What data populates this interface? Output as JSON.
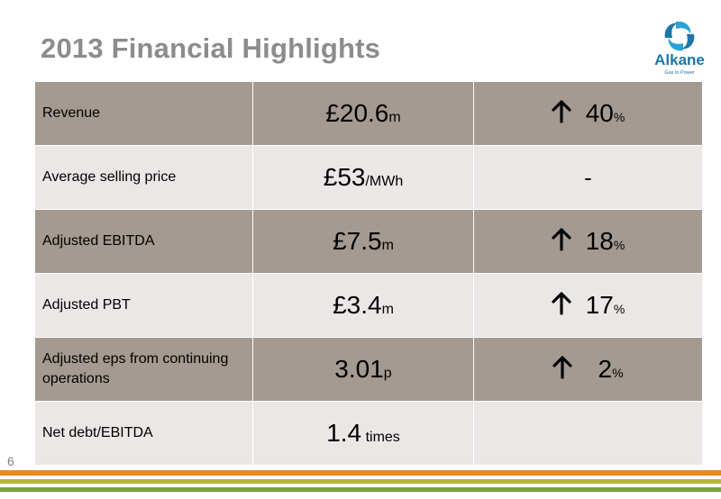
{
  "slide": {
    "title": "2013 Financial Highlights",
    "page_number": "6"
  },
  "logo": {
    "name": "Alkane",
    "tagline": "Gas to Power"
  },
  "rows": [
    {
      "label": "Revenue",
      "value": "£20.6",
      "unit": "m",
      "change_value": "40",
      "change_unit": "%",
      "trend": "up"
    },
    {
      "label": "Average selling price",
      "value": "£53",
      "unit": "/MWh",
      "change_value": "-",
      "change_unit": "",
      "trend": "none"
    },
    {
      "label": "Adjusted EBITDA",
      "value": "£7.5",
      "unit": "m",
      "change_value": "18",
      "change_unit": "%",
      "trend": "up"
    },
    {
      "label": "Adjusted PBT",
      "value": "£3.4",
      "unit": "m",
      "change_value": "17",
      "change_unit": "%",
      "trend": "up"
    },
    {
      "label": "Adjusted eps from continuing operations",
      "value": "3.01",
      "unit": "p",
      "change_value": "2",
      "change_unit": "%",
      "trend": "up"
    },
    {
      "label": "Net debt/EBITDA",
      "value": "1.4",
      "unit": " times",
      "change_value": "",
      "change_unit": "",
      "trend": "none"
    }
  ],
  "colors": {
    "dark_row": "#a49a91",
    "light_row": "#ebe7e6",
    "title": "#8c8c8c",
    "brand_blue": "#1d75a8",
    "stripe_orange": "#e98a2c",
    "stripe_olive": "#b5b53a",
    "stripe_green": "#7aa13d"
  }
}
